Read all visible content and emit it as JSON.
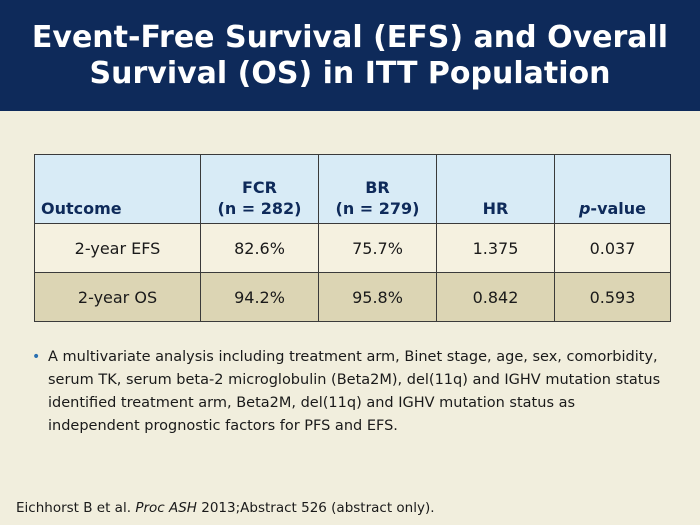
{
  "title": "Event-Free Survival (EFS) and Overall Survival (OS) in ITT Population",
  "table": {
    "headers": {
      "outcome": "Outcome",
      "fcr_line1": "FCR",
      "fcr_line2": "(n = 282)",
      "br_line1": "BR",
      "br_line2": "(n = 279)",
      "hr": "HR",
      "p_italic": "p",
      "p_rest": "-value"
    },
    "rows": [
      {
        "outcome": "2-year EFS",
        "fcr": "82.6%",
        "br": "75.7%",
        "hr": "1.375",
        "p": "0.037"
      },
      {
        "outcome": "2-year OS",
        "fcr": "94.2%",
        "br": "95.8%",
        "hr": "0.842",
        "p": "0.593"
      }
    ]
  },
  "bullet": "A multivariate analysis including treatment arm, Binet stage, age, sex, comorbidity, serum TK, serum beta-2 microglobulin (Beta2M), del(11q) and IGHV mutation status identified treatment arm, Beta2M, del(11q) and IGHV mutation status as independent prognostic factors for PFS and EFS.",
  "citation": {
    "authors": "Eichhorst B et al.",
    "journal": "Proc ASH",
    "rest": "2013;Abstract 526 (abstract only)."
  }
}
